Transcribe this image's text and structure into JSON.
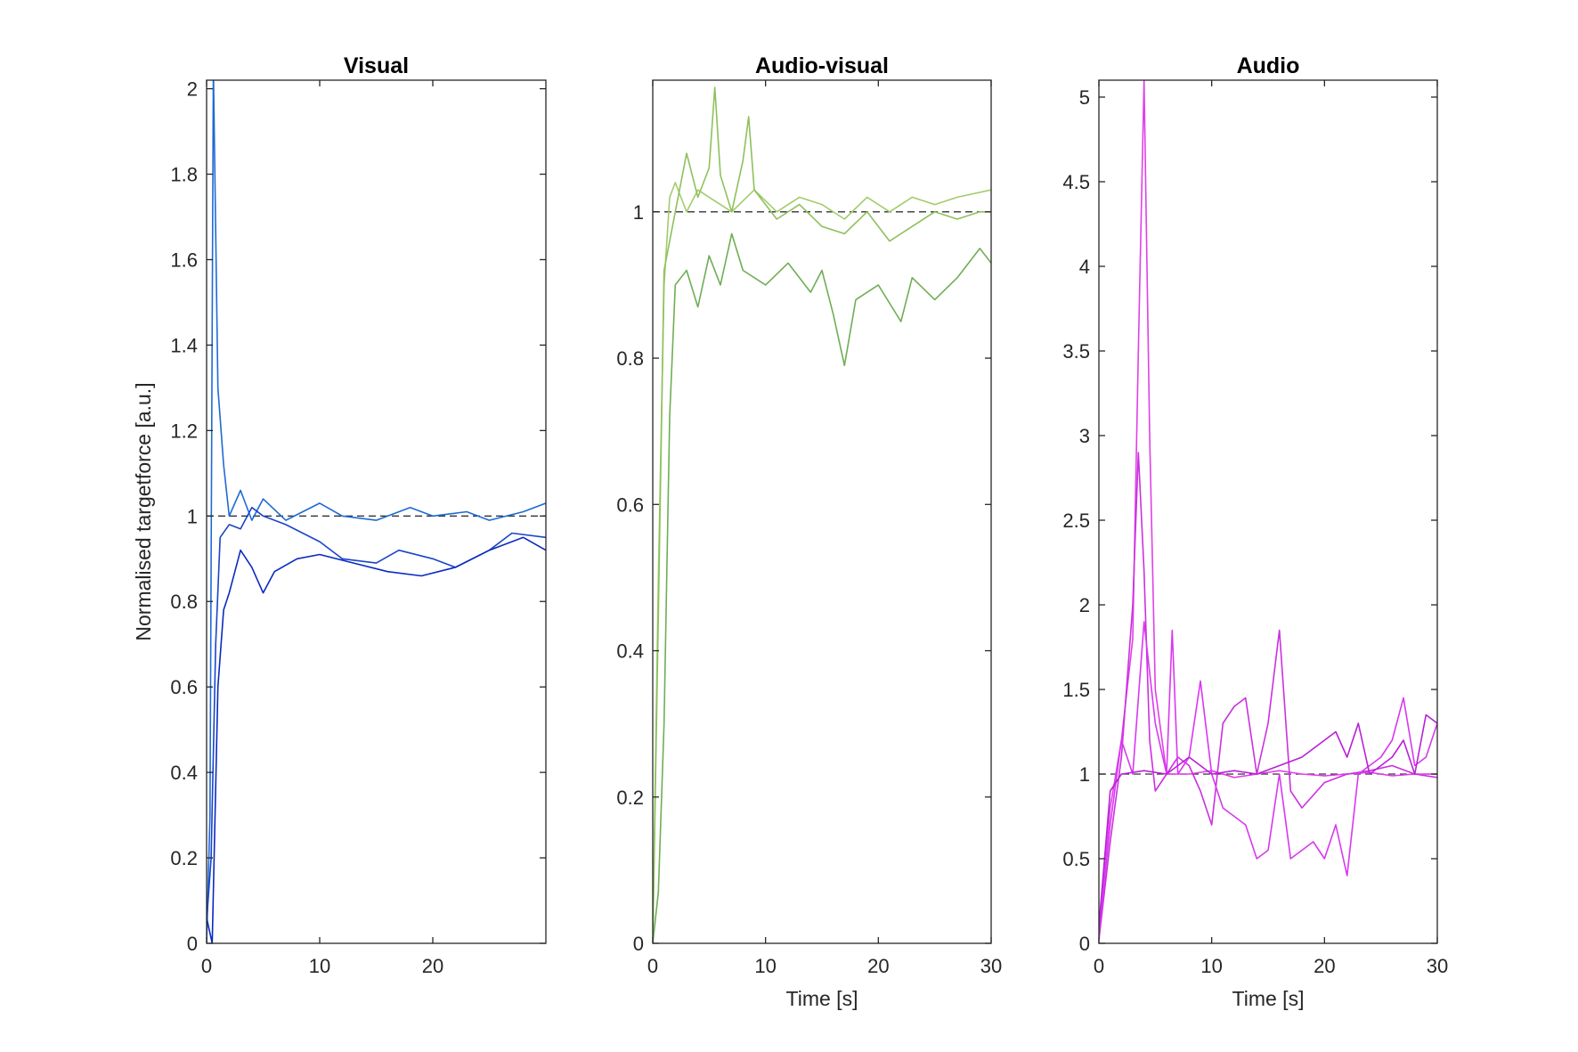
{
  "chart_data": [
    {
      "type": "line",
      "title": "Visual",
      "xlabel": "",
      "ylabel": "Normalised targetforce [a.u.]",
      "xlim": [
        0,
        30
      ],
      "ylim": [
        0,
        2.02
      ],
      "xticks": [
        0,
        10,
        20
      ],
      "yticks": [
        0,
        0.2,
        0.4,
        0.6,
        0.8,
        1,
        1.2,
        1.4,
        1.6,
        1.8,
        2
      ],
      "reference_line": 1,
      "series": [
        {
          "color": "#1f6ad4",
          "x": [
            0,
            0.3,
            0.6,
            1,
            1.5,
            2,
            3,
            4,
            5,
            7,
            10,
            12,
            15,
            18,
            20,
            23,
            25,
            28,
            30
          ],
          "values": [
            0,
            0.3,
            2.05,
            1.3,
            1.12,
            1.0,
            1.06,
            0.99,
            1.04,
            0.99,
            1.03,
            1.0,
            0.99,
            1.02,
            1.0,
            1.01,
            0.99,
            1.01,
            1.03
          ]
        },
        {
          "color": "#1a45c8",
          "x": [
            0,
            0.4,
            0.8,
            1.2,
            2,
            3,
            4,
            5,
            7,
            10,
            12,
            15,
            17,
            20,
            22,
            25,
            27,
            30
          ],
          "values": [
            0.05,
            0.2,
            0.7,
            0.95,
            0.98,
            0.97,
            1.02,
            1.0,
            0.98,
            0.94,
            0.9,
            0.89,
            0.92,
            0.9,
            0.88,
            0.92,
            0.96,
            0.95
          ]
        },
        {
          "color": "#0a2ac0",
          "x": [
            0,
            0.5,
            1,
            1.5,
            2,
            3,
            4,
            5,
            6,
            8,
            10,
            13,
            16,
            19,
            22,
            25,
            28,
            30
          ],
          "values": [
            0.06,
            0.0,
            0.6,
            0.78,
            0.82,
            0.92,
            0.88,
            0.82,
            0.87,
            0.9,
            0.91,
            0.89,
            0.87,
            0.86,
            0.88,
            0.92,
            0.95,
            0.92
          ]
        }
      ]
    },
    {
      "type": "line",
      "title": "Audio-visual",
      "xlabel": "Time [s]",
      "ylabel": "",
      "xlim": [
        0,
        30
      ],
      "ylim": [
        0,
        1.18
      ],
      "xticks": [
        0,
        10,
        20,
        30
      ],
      "yticks": [
        0,
        0.2,
        0.4,
        0.6,
        0.8,
        1
      ],
      "reference_line": 1,
      "series": [
        {
          "color": "#a2cc6a",
          "x": [
            0,
            0.5,
            1,
            1.5,
            2,
            3,
            4,
            5,
            7,
            9,
            11,
            13,
            15,
            17,
            19,
            21,
            23,
            25,
            27,
            30
          ],
          "values": [
            0,
            0.5,
            0.9,
            1.02,
            1.04,
            1.0,
            1.03,
            1.02,
            1.0,
            1.03,
            1.0,
            1.02,
            1.01,
            0.99,
            1.02,
            1.0,
            1.02,
            1.01,
            1.02,
            1.03
          ]
        },
        {
          "color": "#8ec05c",
          "x": [
            0,
            0.5,
            1,
            2,
            3,
            4,
            5,
            5.5,
            6,
            7,
            8,
            8.5,
            9,
            11,
            13,
            15,
            17,
            19,
            21,
            23,
            25,
            27,
            29,
            30
          ],
          "values": [
            0,
            0.45,
            0.92,
            1.0,
            1.08,
            1.02,
            1.06,
            1.17,
            1.05,
            1.0,
            1.07,
            1.13,
            1.03,
            0.99,
            1.01,
            0.98,
            0.97,
            1.0,
            0.96,
            0.98,
            1.0,
            0.99,
            1.0,
            1.0
          ]
        },
        {
          "color": "#6fae55",
          "x": [
            0,
            0.5,
            1,
            1.5,
            2,
            3,
            4,
            5,
            6,
            7,
            8,
            10,
            12,
            14,
            15,
            16,
            17,
            18,
            20,
            22,
            23,
            25,
            27,
            29,
            30
          ],
          "values": [
            0,
            0.07,
            0.3,
            0.72,
            0.9,
            0.92,
            0.87,
            0.94,
            0.9,
            0.97,
            0.92,
            0.9,
            0.93,
            0.89,
            0.92,
            0.86,
            0.79,
            0.88,
            0.9,
            0.85,
            0.91,
            0.88,
            0.91,
            0.95,
            0.93
          ]
        }
      ]
    },
    {
      "type": "line",
      "title": "Audio",
      "xlabel": "Time [s]",
      "ylabel": "",
      "xlim": [
        0,
        30
      ],
      "ylim": [
        0,
        5.1
      ],
      "xticks": [
        0,
        10,
        20,
        30
      ],
      "yticks": [
        0,
        0.5,
        1,
        1.5,
        2,
        2.5,
        3,
        3.5,
        4,
        4.5,
        5
      ],
      "reference_line": 1,
      "series": [
        {
          "color": "#e040e8",
          "x": [
            0,
            1,
            2,
            3,
            3.5,
            4,
            4.5,
            5,
            6,
            8,
            10,
            12,
            14,
            16,
            18,
            20,
            22,
            24,
            26,
            28,
            30
          ],
          "values": [
            0.05,
            0.8,
            1.2,
            1.8,
            3.5,
            5.1,
            3.0,
            1.5,
            1.0,
            1.0,
            1.02,
            0.98,
            1.0,
            1.02,
            1.0,
            0.99,
            1.0,
            1.01,
            0.99,
            1.0,
            1.0
          ]
        },
        {
          "color": "#cc30e0",
          "x": [
            0,
            1,
            2,
            3,
            3.5,
            4,
            4.5,
            5,
            6,
            7,
            8,
            9,
            10,
            11,
            12,
            13,
            14,
            15,
            16,
            17,
            18,
            20,
            22,
            24,
            26,
            28,
            30
          ],
          "values": [
            0.02,
            0.6,
            1.1,
            2.0,
            2.9,
            2.2,
            1.2,
            0.9,
            1.0,
            1.1,
            1.05,
            0.9,
            0.7,
            1.3,
            1.4,
            1.45,
            1.0,
            1.3,
            1.85,
            0.9,
            0.8,
            0.95,
            1.0,
            1.02,
            1.05,
            1.0,
            0.98
          ]
        },
        {
          "color": "#d838f0",
          "x": [
            0,
            1,
            2,
            3,
            4,
            5,
            6,
            6.5,
            7,
            8,
            9,
            10,
            11,
            12,
            13,
            14,
            15,
            16,
            17,
            18,
            19,
            20,
            21,
            22,
            23,
            24,
            25,
            26,
            27,
            28,
            29,
            30
          ],
          "values": [
            0.05,
            0.7,
            1.2,
            1.0,
            1.9,
            1.3,
            1.0,
            1.85,
            1.0,
            1.1,
            1.55,
            1.0,
            0.8,
            0.75,
            0.7,
            0.5,
            0.55,
            1.0,
            0.5,
            0.55,
            0.6,
            0.5,
            0.7,
            0.4,
            1.0,
            1.05,
            1.1,
            1.2,
            1.45,
            1.05,
            1.1,
            1.3
          ]
        },
        {
          "color": "#b820d8",
          "x": [
            0,
            1,
            2,
            4,
            6,
            8,
            10,
            12,
            14,
            16,
            18,
            20,
            21,
            22,
            23,
            24,
            25,
            26,
            27,
            28,
            29,
            30
          ],
          "values": [
            0.1,
            0.9,
            1.0,
            1.02,
            1.0,
            1.1,
            1.0,
            1.02,
            1.0,
            1.05,
            1.1,
            1.2,
            1.25,
            1.1,
            1.3,
            1.0,
            1.05,
            1.1,
            1.2,
            1.0,
            1.35,
            1.3
          ]
        }
      ]
    }
  ]
}
